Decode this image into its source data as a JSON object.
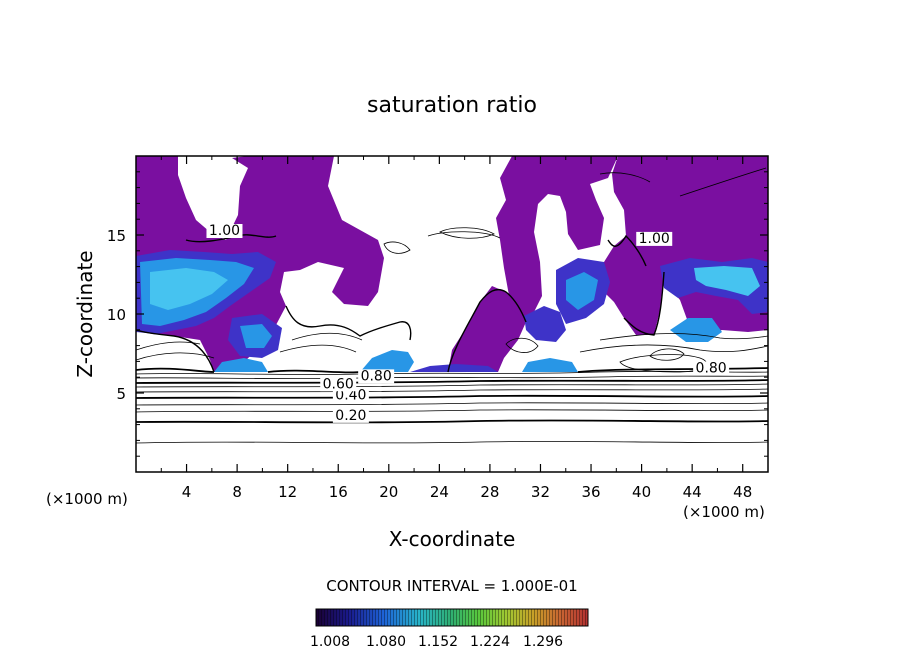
{
  "chart_data": {
    "type": "contour",
    "title": "saturation ratio",
    "xlabel": "X-coordinate",
    "ylabel": "Z-coordinate",
    "x_unit_left": "(×1000 m)",
    "x_unit_right": "(×1000 m)",
    "xlim": [
      0,
      50
    ],
    "ylim": [
      0,
      20
    ],
    "x_ticks": [
      4,
      8,
      12,
      16,
      20,
      24,
      28,
      32,
      36,
      40,
      44,
      48
    ],
    "y_ticks": [
      5,
      10,
      15
    ],
    "contour_interval_label": "CONTOUR INTERVAL = 1.000E-01",
    "contour_labels": [
      {
        "text": "0.20",
        "x": 17.0,
        "y": 3.3
      },
      {
        "text": "0.40",
        "x": 17.0,
        "y": 4.6
      },
      {
        "text": "0.60",
        "x": 16.0,
        "y": 5.3
      },
      {
        "text": "0.80",
        "x": 19.0,
        "y": 5.8
      },
      {
        "text": "0.80",
        "x": 45.5,
        "y": 6.3
      },
      {
        "text": "1.00",
        "x": 7.0,
        "y": 15.0
      },
      {
        "text": "1.00",
        "x": 41.0,
        "y": 14.5
      }
    ],
    "colorbar": {
      "ticks": [
        "1.008",
        "1.080",
        "1.152",
        "1.224",
        "1.296"
      ],
      "colors": [
        "#1a0033",
        "#1a1a8c",
        "#1e64d8",
        "#28b4c8",
        "#30b070",
        "#5ac83c",
        "#a0c832",
        "#c8a028",
        "#c86432",
        "#b43232"
      ]
    },
    "colors": {
      "supersaturated": "#7a0fa0",
      "slight_excess": "#3e33c8",
      "moderate_excess": "#2896e6",
      "strong_excess": "#46c3f0"
    }
  }
}
